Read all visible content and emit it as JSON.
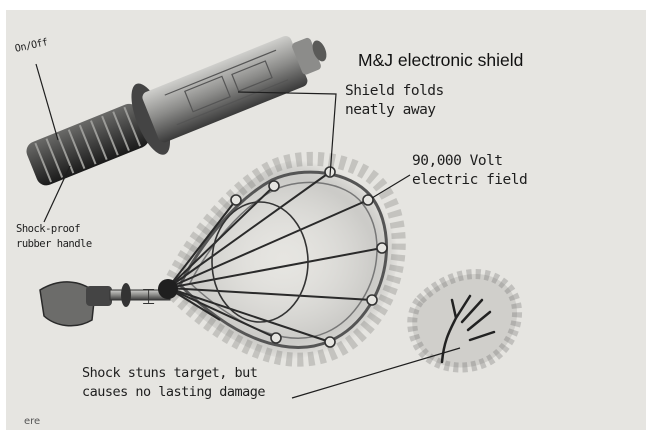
{
  "title": "M&J electronic shield",
  "labels": {
    "on_off": "On/Off",
    "shield_folds": [
      "Shield folds",
      "neatly away"
    ],
    "voltage": [
      "90,000 Volt",
      "electric field"
    ],
    "handle": [
      "Shock-proof",
      "rubber handle"
    ],
    "effect": [
      "Shock stuns target, but",
      "causes no lasting damage"
    ],
    "cut_off": "ere"
  },
  "icons": [
    "text-cursor-icon"
  ]
}
